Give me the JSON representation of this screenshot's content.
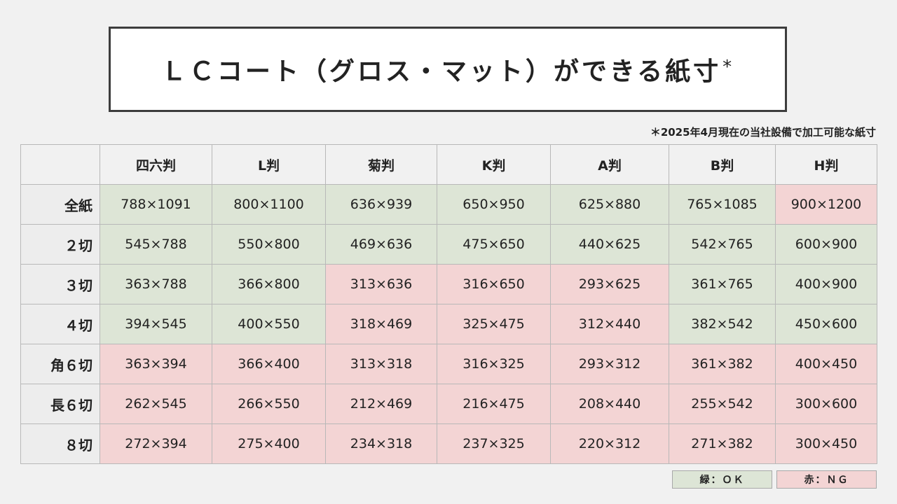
{
  "title": {
    "text": "ＬＣコート（グロス・マット）ができる紙寸",
    "mark": "*"
  },
  "footnote": "＊2025年4月現在の当社設備で加工可能な紙寸",
  "table": {
    "corner": "",
    "columns": [
      "四六判",
      "L判",
      "菊判",
      "K判",
      "A判",
      "B判",
      "H判"
    ],
    "rows": [
      {
        "label": "全紙",
        "cells": [
          {
            "value": "788×1091",
            "status": "ok"
          },
          {
            "value": "800×1100",
            "status": "ok"
          },
          {
            "value": "636×939",
            "status": "ok"
          },
          {
            "value": "650×950",
            "status": "ok"
          },
          {
            "value": "625×880",
            "status": "ok"
          },
          {
            "value": "765×1085",
            "status": "ok"
          },
          {
            "value": "900×1200",
            "status": "ng"
          }
        ]
      },
      {
        "label": "２切",
        "cells": [
          {
            "value": "545×788",
            "status": "ok"
          },
          {
            "value": "550×800",
            "status": "ok"
          },
          {
            "value": "469×636",
            "status": "ok"
          },
          {
            "value": "475×650",
            "status": "ok"
          },
          {
            "value": "440×625",
            "status": "ok"
          },
          {
            "value": "542×765",
            "status": "ok"
          },
          {
            "value": "600×900",
            "status": "ok"
          }
        ]
      },
      {
        "label": "３切",
        "cells": [
          {
            "value": "363×788",
            "status": "ok"
          },
          {
            "value": "366×800",
            "status": "ok"
          },
          {
            "value": "313×636",
            "status": "ng"
          },
          {
            "value": "316×650",
            "status": "ng"
          },
          {
            "value": "293×625",
            "status": "ng"
          },
          {
            "value": "361×765",
            "status": "ok"
          },
          {
            "value": "400×900",
            "status": "ok"
          }
        ]
      },
      {
        "label": "４切",
        "cells": [
          {
            "value": "394×545",
            "status": "ok"
          },
          {
            "value": "400×550",
            "status": "ok"
          },
          {
            "value": "318×469",
            "status": "ng"
          },
          {
            "value": "325×475",
            "status": "ng"
          },
          {
            "value": "312×440",
            "status": "ng"
          },
          {
            "value": "382×542",
            "status": "ok"
          },
          {
            "value": "450×600",
            "status": "ok"
          }
        ]
      },
      {
        "label": "角６切",
        "cells": [
          {
            "value": "363×394",
            "status": "ng"
          },
          {
            "value": "366×400",
            "status": "ng"
          },
          {
            "value": "313×318",
            "status": "ng"
          },
          {
            "value": "316×325",
            "status": "ng"
          },
          {
            "value": "293×312",
            "status": "ng"
          },
          {
            "value": "361×382",
            "status": "ng"
          },
          {
            "value": "400×450",
            "status": "ng"
          }
        ]
      },
      {
        "label": "長６切",
        "cells": [
          {
            "value": "262×545",
            "status": "ng"
          },
          {
            "value": "266×550",
            "status": "ng"
          },
          {
            "value": "212×469",
            "status": "ng"
          },
          {
            "value": "216×475",
            "status": "ng"
          },
          {
            "value": "208×440",
            "status": "ng"
          },
          {
            "value": "255×542",
            "status": "ng"
          },
          {
            "value": "300×600",
            "status": "ng"
          }
        ]
      },
      {
        "label": "８切",
        "cells": [
          {
            "value": "272×394",
            "status": "ng"
          },
          {
            "value": "275×400",
            "status": "ng"
          },
          {
            "value": "234×318",
            "status": "ng"
          },
          {
            "value": "237×325",
            "status": "ng"
          },
          {
            "value": "220×312",
            "status": "ng"
          },
          {
            "value": "271×382",
            "status": "ng"
          },
          {
            "value": "300×450",
            "status": "ng"
          }
        ]
      }
    ]
  },
  "legend": {
    "ok_label": "緑：ＯＫ",
    "ng_label": "赤：ＮＧ"
  },
  "colors": {
    "ok": "#dde5d6",
    "ng": "#f3d4d4",
    "header": "#f1f1f1",
    "title_border": "#3d3d3d"
  }
}
